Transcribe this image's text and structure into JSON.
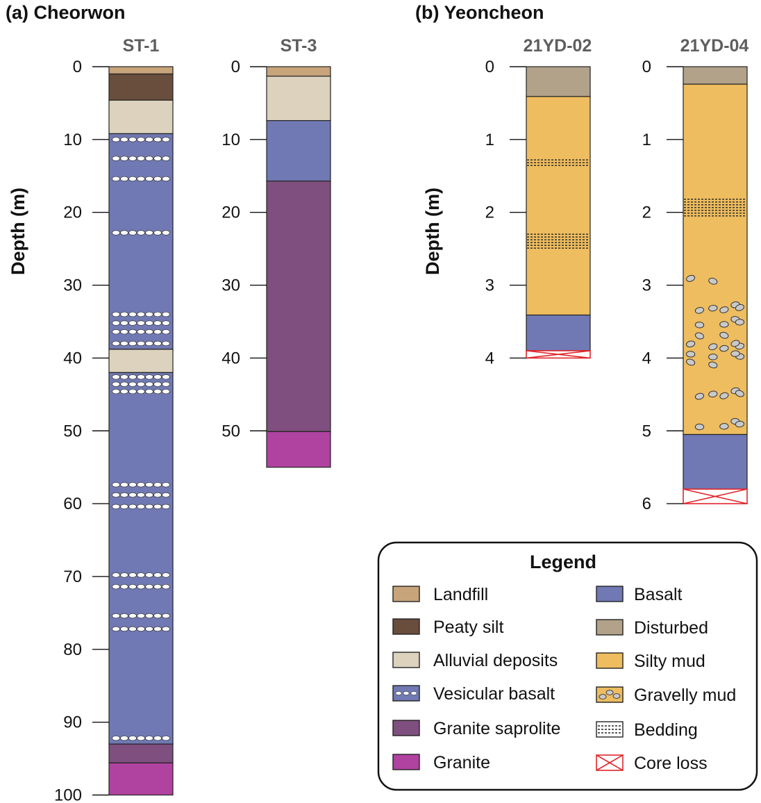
{
  "panels": {
    "a_label": "(a) Cheorwon",
    "b_label": "(b) Yeoncheon"
  },
  "axis_label": "Depth (m)",
  "colors": {
    "landfill": "#c7a47a",
    "peaty_silt": "#694e3d",
    "alluvial": "#dcd2bd",
    "vesicular": "#7079b3",
    "basalt": "#7079b3",
    "saprolite": "#7e4f7f",
    "granite": "#b042a0",
    "disturbed": "#b2a28a",
    "silty_mud": "#eebd5f",
    "gravel": "#c9c9c9",
    "core_loss": "#e1252b"
  },
  "cores": [
    {
      "name": "ST-1",
      "depth_max": 100,
      "ticks": [
        "0",
        "10",
        "20",
        "30",
        "40",
        "50",
        "60",
        "70",
        "80",
        "90",
        "100"
      ],
      "layers": [
        {
          "type": "landfill",
          "top": 0,
          "bottom": 1
        },
        {
          "type": "peaty_silt",
          "top": 1,
          "bottom": 4.6
        },
        {
          "type": "alluvial",
          "top": 4.6,
          "bottom": 9.2
        },
        {
          "type": "vesicular",
          "top": 9.2,
          "bottom": 38.8
        },
        {
          "type": "alluvial",
          "top": 38.8,
          "bottom": 42
        },
        {
          "type": "vesicular",
          "top": 42,
          "bottom": 93
        },
        {
          "type": "saprolite",
          "top": 93,
          "bottom": 95.6
        },
        {
          "type": "granite",
          "top": 95.6,
          "bottom": 100
        }
      ],
      "vesicle_rows": [
        10,
        12.6,
        15.4,
        22.8,
        34,
        35.2,
        36.4,
        38,
        42.6,
        43.6,
        44.6,
        57.4,
        58.8,
        60.4,
        69.8,
        71.4,
        75.4,
        77.2,
        92.2
      ]
    },
    {
      "name": "ST-3",
      "depth_max": 55,
      "ticks": [
        "0",
        "10",
        "20",
        "30",
        "40",
        "50"
      ],
      "layers": [
        {
          "type": "landfill",
          "top": 0,
          "bottom": 1.3
        },
        {
          "type": "alluvial",
          "top": 1.3,
          "bottom": 7.4
        },
        {
          "type": "basalt",
          "top": 7.4,
          "bottom": 15.7
        },
        {
          "type": "saprolite",
          "top": 15.7,
          "bottom": 50.1
        },
        {
          "type": "granite",
          "top": 50.1,
          "bottom": 55
        }
      ],
      "vesicle_rows": []
    },
    {
      "name": "21YD-02",
      "depth_max": 4,
      "ticks": [
        "0",
        "1",
        "2",
        "3",
        "4"
      ],
      "layers": [
        {
          "type": "disturbed",
          "top": 0,
          "bottom": 0.41
        },
        {
          "type": "silty_mud",
          "top": 0.41,
          "bottom": 3.41
        },
        {
          "type": "basalt",
          "top": 3.41,
          "bottom": 3.9
        },
        {
          "type": "core_loss",
          "top": 3.9,
          "bottom": 4.0
        }
      ],
      "bedding": [
        {
          "top": 1.28,
          "bottom": 1.38
        },
        {
          "top": 2.3,
          "bottom": 2.5
        }
      ],
      "gravel": []
    },
    {
      "name": "21YD-04",
      "depth_max": 6,
      "ticks": [
        "0",
        "1",
        "2",
        "3",
        "4",
        "5",
        "6"
      ],
      "layers": [
        {
          "type": "disturbed",
          "top": 0,
          "bottom": 0.24
        },
        {
          "type": "silty_mud",
          "top": 0.24,
          "bottom": 5.05
        },
        {
          "type": "basalt",
          "top": 5.05,
          "bottom": 5.8
        },
        {
          "type": "core_loss",
          "top": 5.8,
          "bottom": 6.0
        }
      ],
      "bedding": [
        {
          "top": 1.82,
          "bottom": 2.06
        }
      ],
      "gravel": [
        2.93,
        3.3,
        3.5,
        3.65,
        3.83,
        3.97,
        4.08,
        4.48,
        4.9
      ]
    }
  ],
  "legend": {
    "title": "Legend",
    "left": [
      {
        "label": "Landfill",
        "type": "landfill"
      },
      {
        "label": "Peaty silt",
        "type": "peaty_silt"
      },
      {
        "label": "Alluvial deposits",
        "type": "alluvial"
      },
      {
        "label": "Vesicular basalt",
        "type": "vesicular"
      },
      {
        "label": "Granite saprolite",
        "type": "saprolite"
      },
      {
        "label": "Granite",
        "type": "granite"
      }
    ],
    "right": [
      {
        "label": "Basalt",
        "type": "basalt"
      },
      {
        "label": "Disturbed",
        "type": "disturbed"
      },
      {
        "label": "Silty mud",
        "type": "silty_mud"
      },
      {
        "label": "Gravelly mud",
        "type": "gravelly"
      },
      {
        "label": "Bedding",
        "type": "bedding"
      },
      {
        "label": "Core loss",
        "type": "core_loss"
      }
    ]
  }
}
